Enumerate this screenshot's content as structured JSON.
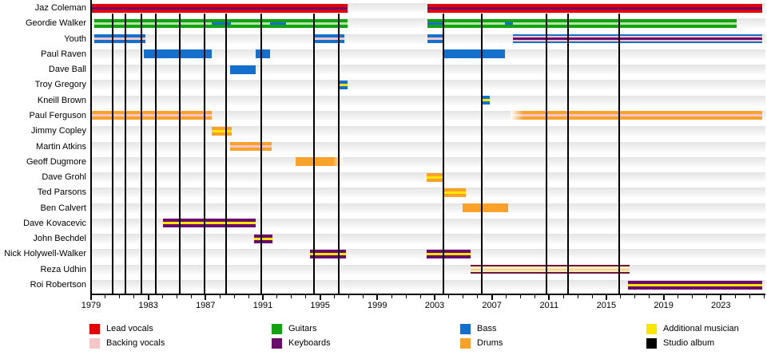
{
  "chart_data": {
    "type": "timeline",
    "description": "Band line-up timeline: members on y-axis, years on x-axis, colored bars for roles, vertical black lines for studio albums",
    "x_axis": {
      "start": 1979,
      "end": 2026,
      "label_years": [
        1979,
        1983,
        1987,
        1991,
        1995,
        1999,
        2003,
        2007,
        2011,
        2015,
        2019,
        2023
      ],
      "minor_tick_interval": 1
    },
    "colors": {
      "red": "#e60000",
      "green": "#12a312",
      "lightgreen": "#b6e6a4",
      "blue": "#1470cc",
      "pink": "#f4c6c6",
      "purple": "#690c6b",
      "orange": "#f9a22b",
      "yellow": "#ffe600",
      "cream": "#f6ecc1",
      "paleorange": "#fbd28c",
      "darkmaroon": "#6d1537",
      "black": "#000000",
      "none": "transparent"
    },
    "albums": [
      1980.5,
      1981.4,
      1982.5,
      1983.5,
      1985.2,
      1986.9,
      1988.45,
      1990.9,
      1994.6,
      1996.3,
      2003.6,
      2006.3,
      2010.8,
      2012.3,
      2015.9
    ],
    "members": [
      {
        "name": "Jaz Coleman",
        "stints": [
          {
            "start": 1979.0,
            "end": 1996.9,
            "layers": [
              "red",
              "purple",
              "red"
            ]
          },
          {
            "start": 2002.5,
            "end": 2025.9,
            "layers": [
              "red",
              "purple",
              "red"
            ]
          }
        ]
      },
      {
        "name": "Geordie Walker",
        "stints": [
          {
            "start": 1979.25,
            "end": 1996.9,
            "layers": [
              "green",
              "lightgreen",
              "green"
            ]
          },
          {
            "start": 2002.5,
            "end": 2024.1,
            "layers": [
              "green",
              "lightgreen",
              "green"
            ]
          },
          {
            "start": 1987.45,
            "end": 1988.75,
            "layers": [
              "none",
              "blue",
              "none"
            ]
          },
          {
            "start": 1991.5,
            "end": 1992.6,
            "layers": [
              "none",
              "blue",
              "none"
            ]
          },
          {
            "start": 2002.5,
            "end": 2003.55,
            "layers": [
              "none",
              "blue",
              "none"
            ]
          },
          {
            "start": 2007.9,
            "end": 2008.45,
            "layers": [
              "none",
              "blue",
              "none"
            ]
          }
        ]
      },
      {
        "name": "Youth",
        "stints": [
          {
            "start": 1979.25,
            "end": 1982.8,
            "layers": [
              "blue",
              "pink",
              "blue"
            ]
          },
          {
            "start": 1994.6,
            "end": 1996.7,
            "layers": [
              "blue",
              "pink",
              "blue"
            ]
          },
          {
            "start": 2002.5,
            "end": 2003.65,
            "layers": [
              "blue",
              "pink",
              "blue"
            ]
          },
          {
            "start": 2008.45,
            "end": 2025.9,
            "layers": [
              "blue",
              "pink",
              "purple",
              "pink",
              "blue"
            ]
          }
        ]
      },
      {
        "name": "Paul Raven",
        "stints": [
          {
            "start": 1982.7,
            "end": 1987.45,
            "layers": [
              "blue"
            ]
          },
          {
            "start": 1990.5,
            "end": 1991.5,
            "layers": [
              "blue"
            ]
          },
          {
            "start": 2003.6,
            "end": 2007.9,
            "layers": [
              "blue"
            ]
          }
        ]
      },
      {
        "name": "Dave Ball",
        "stints": [
          {
            "start": 1988.7,
            "end": 1990.5,
            "layers": [
              "blue"
            ]
          }
        ]
      },
      {
        "name": "Troy Gregory",
        "stints": [
          {
            "start": 1996.3,
            "end": 1996.9,
            "layers": [
              "blue",
              "yellow",
              "blue"
            ]
          }
        ]
      },
      {
        "name": "Kneill Brown",
        "stints": [
          {
            "start": 2006.3,
            "end": 2006.85,
            "layers": [
              "blue",
              "yellow",
              "blue"
            ]
          }
        ]
      },
      {
        "name": "Paul Ferguson",
        "stints": [
          {
            "start": 1979.0,
            "end": 1987.45,
            "layers": [
              "orange",
              "pink",
              "orange"
            ]
          },
          {
            "start": 2008.3,
            "end": 2025.9,
            "layers": [
              "orange",
              "pink",
              "orange"
            ],
            "fade_in": true
          }
        ]
      },
      {
        "name": "Jimmy Copley",
        "stints": [
          {
            "start": 1987.45,
            "end": 1988.8,
            "layers": [
              "orange",
              "yellow",
              "orange"
            ]
          }
        ]
      },
      {
        "name": "Martin Atkins",
        "stints": [
          {
            "start": 1988.7,
            "end": 1991.6,
            "layers": [
              "orange",
              "pink",
              "orange"
            ]
          }
        ]
      },
      {
        "name": "Geoff Dugmore",
        "stints": [
          {
            "start": 1993.3,
            "end": 1996.6,
            "layers": [
              "orange"
            ],
            "fade_out": true
          }
        ]
      },
      {
        "name": "Dave Grohl",
        "stints": [
          {
            "start": 2002.45,
            "end": 2003.65,
            "layers": [
              "orange",
              "yellow",
              "orange"
            ]
          }
        ]
      },
      {
        "name": "Ted Parsons",
        "stints": [
          {
            "start": 2003.65,
            "end": 2005.2,
            "layers": [
              "orange",
              "yellow",
              "orange"
            ]
          }
        ]
      },
      {
        "name": "Ben Calvert",
        "stints": [
          {
            "start": 2004.95,
            "end": 2008.15,
            "layers": [
              "orange"
            ]
          }
        ]
      },
      {
        "name": "Dave Kovacevic",
        "stints": [
          {
            "start": 1984.0,
            "end": 1990.5,
            "layers": [
              "purple",
              "yellow",
              "purple"
            ]
          }
        ]
      },
      {
        "name": "John Bechdel",
        "stints": [
          {
            "start": 1990.4,
            "end": 1991.65,
            "layers": [
              "purple",
              "yellow",
              "purple"
            ]
          }
        ]
      },
      {
        "name": "Nick Holywell-Walker",
        "stints": [
          {
            "start": 1994.3,
            "end": 1996.8,
            "layers": [
              "purple",
              "yellow",
              "purple"
            ]
          },
          {
            "start": 2002.45,
            "end": 2005.5,
            "layers": [
              "purple",
              "yellow",
              "purple"
            ]
          }
        ]
      },
      {
        "name": "Reza Udhin",
        "stints": [
          {
            "start": 2005.5,
            "end": 2016.6,
            "layers": [
              "darkmaroon",
              "cream",
              "paleorange",
              "cream",
              "darkmaroon"
            ]
          }
        ]
      },
      {
        "name": "Roi Robertson",
        "stints": [
          {
            "start": 2016.5,
            "end": 2025.9,
            "layers": [
              "purple",
              "yellow",
              "purple"
            ]
          }
        ]
      }
    ],
    "legend": {
      "columns": [
        [
          {
            "label": "Lead vocals",
            "color": "red"
          },
          {
            "label": "Backing vocals",
            "color": "pink"
          }
        ],
        [
          {
            "label": "Guitars",
            "color": "green"
          },
          {
            "label": "Keyboards",
            "color": "purple"
          }
        ],
        [
          {
            "label": "Bass",
            "color": "blue"
          },
          {
            "label": "Drums",
            "color": "orange"
          }
        ],
        [
          {
            "label": "Additional musician",
            "color": "yellow"
          },
          {
            "label": "Studio album",
            "color": "black"
          }
        ]
      ]
    }
  }
}
